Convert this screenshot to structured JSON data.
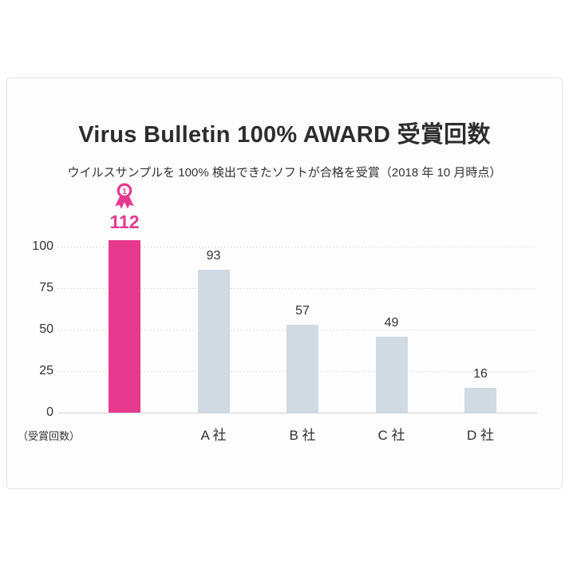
{
  "card": {
    "title": "Virus Bulletin 100% AWARD 受賞回数",
    "subtitle": "ウイルスサンプルを 100% 検出できたソフトが合格を受賞（2018 年 10 月時点）"
  },
  "icons": {
    "medal_icon": "rank-1-rosette-medal"
  },
  "chart_data": {
    "type": "bar",
    "title": "Virus Bulletin 100% AWARD 受賞回数",
    "subtitle": "ウイルスサンプルを 100% 検出できたソフトが合格を受賞（2018 年 10 月時点）",
    "categories": [
      "",
      "A 社",
      "B 社",
      "C 社",
      "D 社"
    ],
    "values": [
      112,
      93,
      57,
      49,
      16
    ],
    "highlight": {
      "index": 0,
      "value_label": "112",
      "medal_rank": "1"
    },
    "y_axis": {
      "ticks": [
        0,
        25,
        50,
        75,
        100
      ],
      "range": [
        0,
        100
      ],
      "unit_label": "（受賞回数）"
    },
    "grid": {
      "horizontal": true,
      "style": "dotted"
    },
    "legend": "none",
    "colors": {
      "highlight_bar": "#e7398d",
      "default_bar": "#cfdae3",
      "text": "#333333",
      "grid_line": "#c2c9cf",
      "axis_line": "#ccd0d4",
      "card_border": "#dee4e9"
    }
  }
}
